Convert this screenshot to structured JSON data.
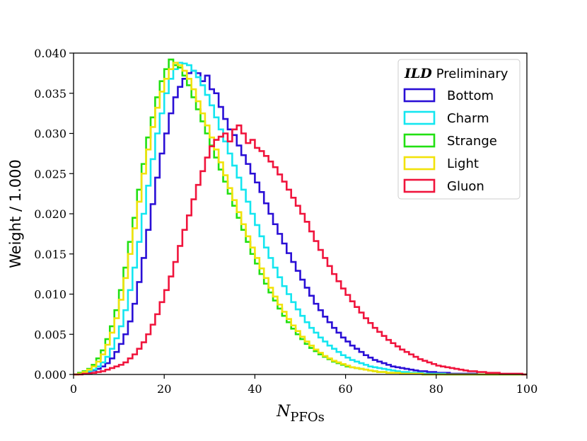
{
  "chart_data": {
    "type": "step",
    "title": "",
    "xlabel": "N",
    "xlabel_sub": "PFOs",
    "ylabel": "Weight / 1.000",
    "xlim": [
      0,
      100
    ],
    "ylim": [
      0,
      0.04
    ],
    "xticks": [
      "0",
      "20",
      "40",
      "60",
      "80",
      "100"
    ],
    "xtick_values": [
      0,
      20,
      40,
      60,
      80,
      100
    ],
    "yticks": [
      "0.000",
      "0.005",
      "0.010",
      "0.015",
      "0.020",
      "0.025",
      "0.030",
      "0.035",
      "0.040"
    ],
    "ytick_values": [
      0,
      0.005,
      0.01,
      0.015,
      0.02,
      0.025,
      0.03,
      0.035,
      0.04
    ],
    "legend": {
      "location": "top-right",
      "title_bold": "ILD",
      "title_rest": "Preliminary"
    },
    "bin_width": 1,
    "x_start": 0,
    "series": [
      {
        "name": "Bottom",
        "color": "#2a0fd6",
        "values": [
          0.0,
          0.0001,
          0.0002,
          0.0003,
          0.0005,
          0.0007,
          0.001,
          0.0014,
          0.002,
          0.0028,
          0.0038,
          0.005,
          0.0066,
          0.0088,
          0.0115,
          0.0145,
          0.018,
          0.0212,
          0.0245,
          0.0275,
          0.03,
          0.0325,
          0.0345,
          0.0358,
          0.0368,
          0.0375,
          0.0378,
          0.0375,
          0.0365,
          0.0372,
          0.0355,
          0.035,
          0.0333,
          0.0318,
          0.0305,
          0.0298,
          0.0285,
          0.0273,
          0.0262,
          0.025,
          0.0239,
          0.0227,
          0.0213,
          0.02,
          0.0187,
          0.0175,
          0.0163,
          0.0151,
          0.014,
          0.0129,
          0.0118,
          0.0108,
          0.0098,
          0.0088,
          0.008,
          0.0072,
          0.0065,
          0.0058,
          0.0052,
          0.0046,
          0.0041,
          0.0036,
          0.0032,
          0.0028,
          0.0024,
          0.0021,
          0.0018,
          0.0016,
          0.0014,
          0.0012,
          0.001,
          0.0009,
          0.0008,
          0.0007,
          0.0006,
          0.0005,
          0.0004,
          0.0004,
          0.0003,
          0.0003,
          0.0002,
          0.0002,
          0.0002,
          0.0001,
          0.0001,
          0.0001,
          0.0001,
          0.0001,
          0.0001,
          0.0,
          0.0,
          0.0,
          0.0,
          0.0,
          0.0,
          0.0,
          0.0,
          0.0,
          0.0,
          0.0
        ]
      },
      {
        "name": "Charm",
        "color": "#14e6f0",
        "values": [
          0.0,
          0.0001,
          0.0002,
          0.0004,
          0.0006,
          0.001,
          0.0015,
          0.0022,
          0.0032,
          0.0045,
          0.006,
          0.008,
          0.0105,
          0.0133,
          0.0165,
          0.02,
          0.0235,
          0.0268,
          0.03,
          0.0325,
          0.035,
          0.0368,
          0.038,
          0.0388,
          0.0387,
          0.0385,
          0.0378,
          0.037,
          0.036,
          0.0348,
          0.0335,
          0.032,
          0.0305,
          0.029,
          0.0275,
          0.026,
          0.0245,
          0.023,
          0.0215,
          0.02,
          0.0186,
          0.0172,
          0.0158,
          0.0145,
          0.0133,
          0.0121,
          0.011,
          0.01,
          0.009,
          0.0081,
          0.0073,
          0.0065,
          0.0058,
          0.0052,
          0.0046,
          0.0041,
          0.0036,
          0.0032,
          0.0028,
          0.0024,
          0.0021,
          0.0018,
          0.0016,
          0.0014,
          0.0012,
          0.001,
          0.0009,
          0.0008,
          0.0007,
          0.0006,
          0.0005,
          0.0004,
          0.0003,
          0.0003,
          0.0002,
          0.0002,
          0.0002,
          0.0001,
          0.0001,
          0.0001,
          0.0001,
          0.0001,
          0.0,
          0.0,
          0.0,
          0.0,
          0.0,
          0.0,
          0.0,
          0.0,
          0.0,
          0.0,
          0.0,
          0.0,
          0.0,
          0.0,
          0.0,
          0.0,
          0.0,
          0.0
        ]
      },
      {
        "name": "Strange",
        "color": "#22e012",
        "values": [
          0.0,
          0.0002,
          0.0004,
          0.0007,
          0.0012,
          0.002,
          0.003,
          0.0044,
          0.006,
          0.008,
          0.0105,
          0.0133,
          0.0165,
          0.0195,
          0.023,
          0.0262,
          0.0295,
          0.032,
          0.0345,
          0.0365,
          0.038,
          0.0392,
          0.0385,
          0.0382,
          0.0372,
          0.036,
          0.0345,
          0.033,
          0.0315,
          0.03,
          0.0285,
          0.027,
          0.0255,
          0.024,
          0.0225,
          0.021,
          0.0195,
          0.018,
          0.0165,
          0.015,
          0.0138,
          0.0125,
          0.0113,
          0.0102,
          0.0092,
          0.0082,
          0.0073,
          0.0065,
          0.0057,
          0.005,
          0.0044,
          0.0038,
          0.0033,
          0.0029,
          0.0025,
          0.0022,
          0.0019,
          0.0016,
          0.0014,
          0.0012,
          0.001,
          0.0009,
          0.0008,
          0.0007,
          0.0006,
          0.0005,
          0.0004,
          0.0003,
          0.0003,
          0.0002,
          0.0002,
          0.0002,
          0.0001,
          0.0001,
          0.0001,
          0.0001,
          0.0001,
          0.0,
          0.0,
          0.0,
          0.0,
          0.0,
          0.0,
          0.0,
          0.0,
          0.0,
          0.0,
          0.0,
          0.0,
          0.0,
          0.0,
          0.0,
          0.0,
          0.0,
          0.0,
          0.0,
          0.0,
          0.0,
          0.0,
          0.0
        ]
      },
      {
        "name": "Light",
        "color": "#f2e30a",
        "values": [
          0.0,
          0.0001,
          0.0003,
          0.0006,
          0.001,
          0.0016,
          0.0025,
          0.0037,
          0.0052,
          0.007,
          0.0093,
          0.012,
          0.015,
          0.0182,
          0.0215,
          0.025,
          0.028,
          0.0308,
          0.0332,
          0.0352,
          0.0368,
          0.038,
          0.0388,
          0.0385,
          0.0378,
          0.0368,
          0.0355,
          0.034,
          0.0325,
          0.031,
          0.0295,
          0.028,
          0.0264,
          0.0248,
          0.0232,
          0.0217,
          0.0202,
          0.0187,
          0.0172,
          0.0158,
          0.0145,
          0.0132,
          0.012,
          0.0108,
          0.0097,
          0.0087,
          0.0078,
          0.0069,
          0.0061,
          0.0054,
          0.0047,
          0.0041,
          0.0036,
          0.0031,
          0.0027,
          0.0023,
          0.002,
          0.0017,
          0.0015,
          0.0013,
          0.0011,
          0.0009,
          0.0008,
          0.0007,
          0.0006,
          0.0005,
          0.0004,
          0.0003,
          0.0003,
          0.0002,
          0.0002,
          0.0002,
          0.0001,
          0.0001,
          0.0001,
          0.0001,
          0.0001,
          0.0,
          0.0,
          0.0,
          0.0,
          0.0,
          0.0,
          0.0,
          0.0,
          0.0,
          0.0,
          0.0,
          0.0,
          0.0,
          0.0,
          0.0,
          0.0,
          0.0,
          0.0,
          0.0,
          0.0,
          0.0,
          0.0,
          0.0
        ]
      },
      {
        "name": "Gluon",
        "color": "#f0143c",
        "values": [
          0.0,
          0.0,
          0.0001,
          0.0001,
          0.0002,
          0.0003,
          0.0004,
          0.0006,
          0.0008,
          0.001,
          0.0012,
          0.0015,
          0.002,
          0.0025,
          0.0032,
          0.004,
          0.005,
          0.0062,
          0.0075,
          0.009,
          0.0105,
          0.0122,
          0.014,
          0.016,
          0.018,
          0.0198,
          0.0218,
          0.0236,
          0.0253,
          0.027,
          0.0284,
          0.0292,
          0.0296,
          0.03,
          0.029,
          0.0305,
          0.031,
          0.03,
          0.0288,
          0.0292,
          0.0282,
          0.0278,
          0.0272,
          0.0265,
          0.0258,
          0.0249,
          0.024,
          0.023,
          0.022,
          0.021,
          0.02,
          0.019,
          0.0178,
          0.0166,
          0.0155,
          0.0145,
          0.0135,
          0.0125,
          0.0116,
          0.0107,
          0.0099,
          0.0091,
          0.0084,
          0.0077,
          0.007,
          0.0064,
          0.0058,
          0.0053,
          0.0048,
          0.0043,
          0.0039,
          0.0035,
          0.0031,
          0.0028,
          0.0025,
          0.0022,
          0.0019,
          0.0017,
          0.0015,
          0.0013,
          0.0011,
          0.001,
          0.0009,
          0.0008,
          0.0007,
          0.0006,
          0.0005,
          0.0004,
          0.0004,
          0.0003,
          0.0003,
          0.0002,
          0.0002,
          0.0002,
          0.0001,
          0.0001,
          0.0001,
          0.0001,
          0.0001,
          0.0
        ]
      }
    ]
  }
}
